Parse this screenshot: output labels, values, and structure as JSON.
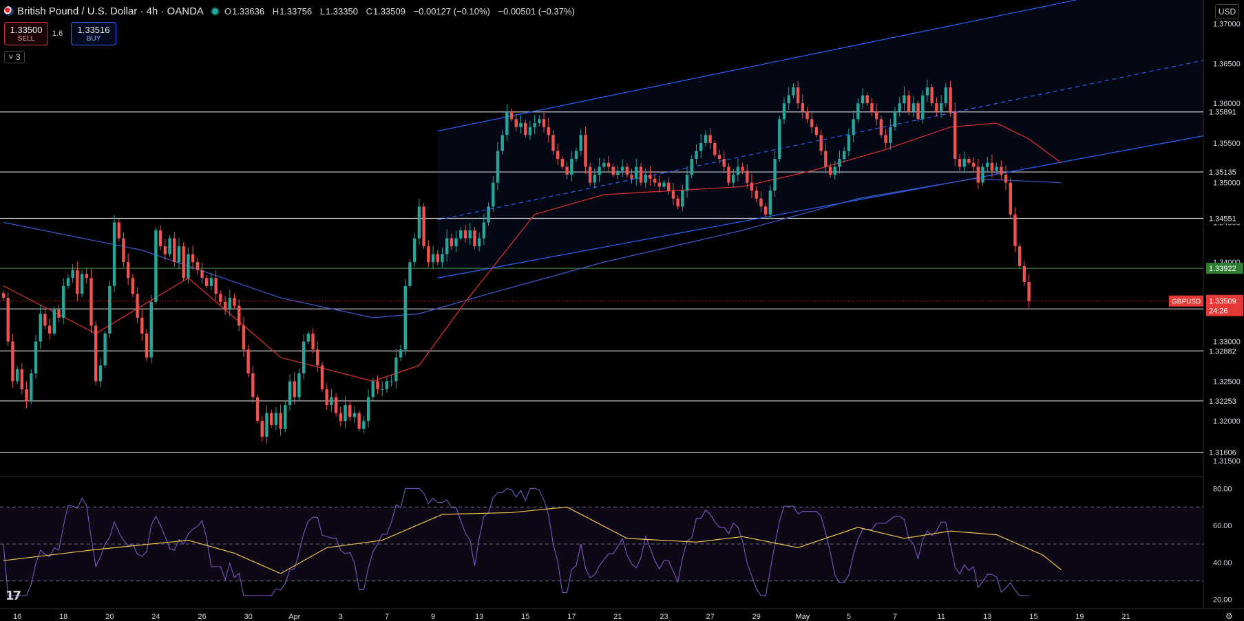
{
  "header": {
    "symbol": "British Pound / U.S. Dollar · 4h · OANDA",
    "o_label": "O",
    "o_value": "1.33636",
    "h_label": "H",
    "h_value": "1.33756",
    "l_label": "L",
    "l_value": "1.33350",
    "c_label": "C",
    "c_value": "1.33509",
    "change": "−0.00127 (−0.10%)",
    "change2": "−0.00501 (−0.37%)"
  },
  "trade": {
    "sell_price": "1.33500",
    "sell_label": "SELL",
    "buy_price": "1.33516",
    "buy_label": "BUY",
    "spread": "1.6"
  },
  "indicator_toggle": "˅ 3",
  "currency_button": "USD",
  "logo_text": "17",
  "colors": {
    "background": "#000000",
    "up_candle": "#26a69a",
    "down_candle": "#ef5350",
    "channel": "#2962ff",
    "ma_red": "#d32f2f",
    "ma_blue": "#3a56c8",
    "level_line": "#cfcfcf",
    "green_level": "#2e7d32",
    "rsi_line": "#7e57c2",
    "rsi_ma": "#f2c94c",
    "price_tag": "#e53935"
  },
  "chart_data": {
    "type": "candlestick",
    "symbol_label": "GBPUSD",
    "last_price": "1.33509",
    "countdown": "24:26",
    "y_ticks": [
      "1.37000",
      "1.36500",
      "1.36000",
      "1.35500",
      "1.35000",
      "1.34500",
      "1.34000",
      "1.33500",
      "1.33000",
      "1.32500",
      "1.32000",
      "1.31500"
    ],
    "y_tick_values": [
      1.37,
      1.365,
      1.36,
      1.355,
      1.35,
      1.345,
      1.34,
      1.335,
      1.33,
      1.325,
      1.32,
      1.315
    ],
    "ylim": [
      1.313,
      1.373
    ],
    "x_ticks": [
      "16",
      "18",
      "20",
      "24",
      "26",
      "30",
      "Apr",
      "3",
      "7",
      "9",
      "13",
      "15",
      "17",
      "21",
      "23",
      "27",
      "29",
      "May",
      "5",
      "7",
      "11",
      "13",
      "15",
      "19",
      "21"
    ],
    "x_tick_index": [
      3,
      13,
      23,
      33,
      43,
      53,
      63,
      73,
      83,
      93,
      103,
      113,
      123,
      133,
      143,
      153,
      163,
      173,
      183,
      193,
      203,
      213,
      223,
      233,
      243
    ],
    "horizontal_levels": [
      {
        "label": "1.35891",
        "value": 1.35891
      },
      {
        "label": "1.35135",
        "value": 1.35135
      },
      {
        "label": "1.34551",
        "value": 1.34551
      },
      {
        "label": "1.33411",
        "value": 1.33411
      },
      {
        "label": "1.32882",
        "value": 1.32882
      },
      {
        "label": "1.32253",
        "value": 1.32253
      },
      {
        "label": "1.31606",
        "value": 1.31606
      }
    ],
    "green_level": {
      "label": "1.33922",
      "value": 1.33922
    },
    "channel": {
      "start_index": 94,
      "end_index": 262,
      "upper": [
        1.3565,
        1.3763
      ],
      "middle": [
        1.3453,
        1.3654
      ],
      "lower": [
        1.338,
        1.3559
      ]
    },
    "close": [
      1.3355,
      1.33,
      1.325,
      1.3265,
      1.324,
      1.3225,
      1.326,
      1.33,
      1.3335,
      1.332,
      1.331,
      1.334,
      1.333,
      1.337,
      1.338,
      1.339,
      1.336,
      1.3385,
      1.338,
      1.332,
      1.325,
      1.327,
      1.331,
      1.337,
      1.345,
      1.343,
      1.34,
      1.338,
      1.336,
      1.333,
      1.331,
      1.328,
      1.335,
      1.344,
      1.342,
      1.341,
      1.343,
      1.34,
      1.342,
      1.338,
      1.341,
      1.34,
      1.339,
      1.338,
      1.337,
      1.338,
      1.336,
      1.335,
      1.334,
      1.3355,
      1.3345,
      1.332,
      1.329,
      1.326,
      1.323,
      1.32,
      1.318,
      1.321,
      1.3195,
      1.321,
      1.319,
      1.322,
      1.325,
      1.323,
      1.326,
      1.33,
      1.331,
      1.329,
      1.327,
      1.324,
      1.322,
      1.323,
      1.321,
      1.32,
      1.322,
      1.3205,
      1.321,
      1.319,
      1.32,
      1.323,
      1.325,
      1.324,
      1.324,
      1.325,
      1.325,
      1.328,
      1.329,
      1.337,
      1.34,
      1.343,
      1.347,
      1.342,
      1.34,
      1.341,
      1.34,
      1.341,
      1.343,
      1.342,
      1.343,
      1.344,
      1.343,
      1.344,
      1.342,
      1.343,
      1.345,
      1.347,
      1.35,
      1.354,
      1.356,
      1.359,
      1.358,
      1.357,
      1.3575,
      1.356,
      1.357,
      1.3575,
      1.358,
      1.357,
      1.356,
      1.354,
      1.353,
      1.352,
      1.351,
      1.353,
      1.354,
      1.356,
      1.352,
      1.35,
      1.351,
      1.352,
      1.3525,
      1.352,
      1.351,
      1.3515,
      1.352,
      1.351,
      1.3505,
      1.352,
      1.35,
      1.351,
      1.3505,
      1.35,
      1.3495,
      1.35,
      1.349,
      1.348,
      1.347,
      1.349,
      1.351,
      1.353,
      1.354,
      1.355,
      1.356,
      1.355,
      1.3535,
      1.353,
      1.352,
      1.35,
      1.351,
      1.352,
      1.3515,
      1.35,
      1.349,
      1.348,
      1.347,
      1.346,
      1.349,
      1.353,
      1.358,
      1.36,
      1.361,
      1.362,
      1.36,
      1.359,
      1.358,
      1.357,
      1.356,
      1.354,
      1.352,
      1.351,
      1.352,
      1.353,
      1.354,
      1.356,
      1.358,
      1.36,
      1.361,
      1.36,
      1.359,
      1.358,
      1.356,
      1.355,
      1.357,
      1.359,
      1.36,
      1.361,
      1.359,
      1.36,
      1.358,
      1.361,
      1.362,
      1.36,
      1.359,
      1.36,
      1.362,
      1.359,
      1.353,
      1.352,
      1.353,
      1.3525,
      1.352,
      1.35,
      1.352,
      1.3525,
      1.3515,
      1.352,
      1.351,
      1.35,
      1.346,
      1.342,
      1.3395,
      1.3375,
      1.3351
    ],
    "ma_red": [
      [
        0,
        1.337
      ],
      [
        20,
        1.331
      ],
      [
        40,
        1.338
      ],
      [
        60,
        1.328
      ],
      [
        80,
        1.325
      ],
      [
        90,
        1.327
      ],
      [
        100,
        1.335
      ],
      [
        115,
        1.346
      ],
      [
        130,
        1.3485
      ],
      [
        145,
        1.349
      ],
      [
        160,
        1.3495
      ],
      [
        175,
        1.3515
      ],
      [
        190,
        1.354
      ],
      [
        205,
        1.357
      ],
      [
        215,
        1.3575
      ],
      [
        222,
        1.3555
      ],
      [
        229,
        1.3525
      ]
    ],
    "ma_blue": [
      [
        0,
        1.345
      ],
      [
        30,
        1.3415
      ],
      [
        60,
        1.3355
      ],
      [
        80,
        1.333
      ],
      [
        90,
        1.3335
      ],
      [
        105,
        1.336
      ],
      [
        130,
        1.34
      ],
      [
        160,
        1.344
      ],
      [
        185,
        1.348
      ],
      [
        210,
        1.3505
      ],
      [
        229,
        1.35
      ]
    ],
    "rsi": {
      "ylim": [
        15,
        85
      ],
      "y_ticks": [
        "80.00",
        "60.00",
        "40.00",
        "20.00"
      ],
      "y_tick_values": [
        80,
        60,
        40,
        20
      ],
      "levels": [
        70,
        50,
        30
      ],
      "rsi_ma": [
        [
          0,
          41
        ],
        [
          20,
          47
        ],
        [
          40,
          52
        ],
        [
          50,
          45
        ],
        [
          60,
          34
        ],
        [
          70,
          48
        ],
        [
          82,
          52
        ],
        [
          95,
          66
        ],
        [
          110,
          67
        ],
        [
          122,
          70
        ],
        [
          135,
          53
        ],
        [
          150,
          51
        ],
        [
          160,
          54
        ],
        [
          172,
          48
        ],
        [
          185,
          59
        ],
        [
          195,
          53
        ],
        [
          205,
          57
        ],
        [
          215,
          55
        ],
        [
          225,
          44
        ],
        [
          229,
          36
        ]
      ]
    }
  }
}
